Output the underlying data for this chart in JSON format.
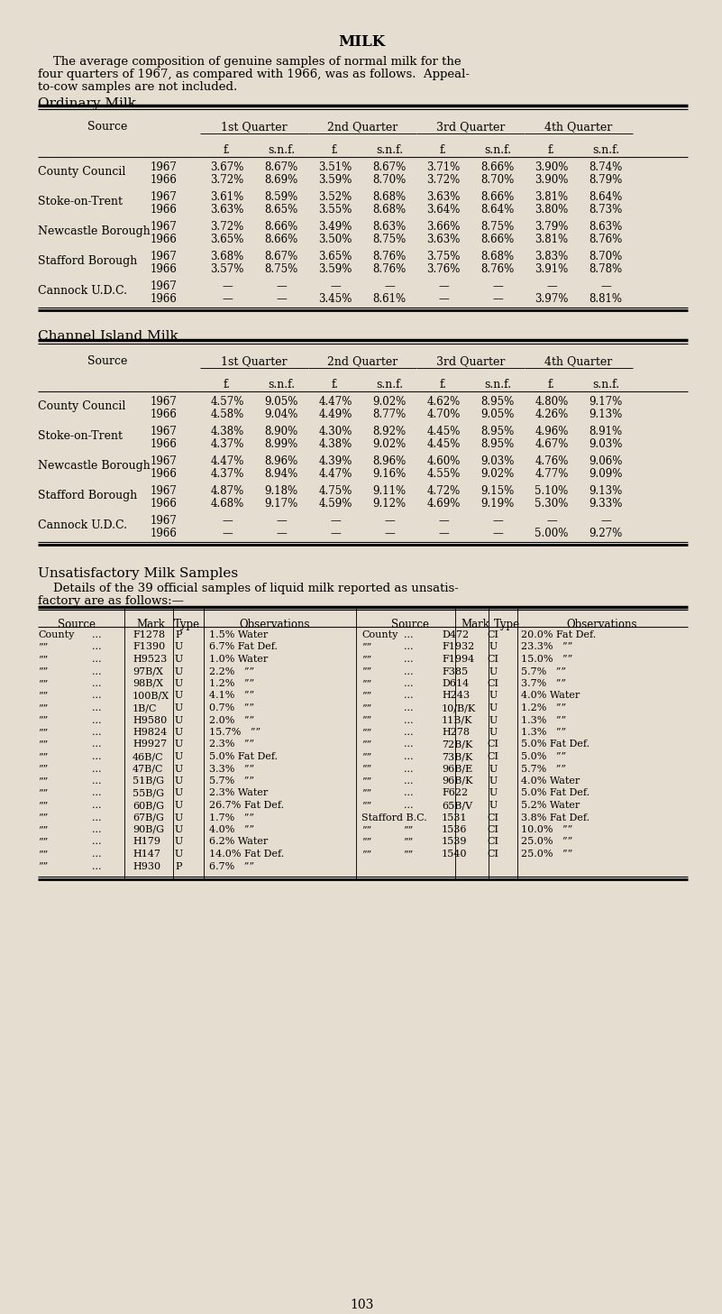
{
  "bg_color": "#e5ddd0",
  "title": "MILK",
  "intro_line1": "    The average composition of genuine samples of normal milk for the",
  "intro_line2": "four quarters of 1967, as compared with 1966, was as follows.  Appeal-",
  "intro_line3": "to-cow samples are not included.",
  "ordinary_milk_title": "Ordinary Milk",
  "channel_island_title": "Channel Island Milk",
  "unsatisfactory_title": "Unsatisfactory Milk Samples",
  "unsatisfactory_intro1": "    Details of the 39 official samples of liquid milk reported as unsatis-",
  "unsatisfactory_intro2": "factory are as follows:—",
  "quarter_headers": [
    "1st Quarter",
    "2nd Quarter",
    "3rd Quarter",
    "4th Quarter"
  ],
  "ordinary_sources": [
    {
      "name": "County Council",
      "years": [
        "1967",
        "1966"
      ],
      "data": [
        [
          "3.67%",
          "8.67%",
          "3.51%",
          "8.67%",
          "3.71%",
          "8.66%",
          "3.90%",
          "8.74%"
        ],
        [
          "3.72%",
          "8.69%",
          "3.59%",
          "8.70%",
          "3.72%",
          "8.70%",
          "3.90%",
          "8.79%"
        ]
      ]
    },
    {
      "name": "Stoke-on-Trent",
      "years": [
        "1967",
        "1966"
      ],
      "data": [
        [
          "3.61%",
          "8.59%",
          "3.52%",
          "8.68%",
          "3.63%",
          "8.66%",
          "3.81%",
          "8.64%"
        ],
        [
          "3.63%",
          "8.65%",
          "3.55%",
          "8.68%",
          "3.64%",
          "8.64%",
          "3.80%",
          "8.73%"
        ]
      ]
    },
    {
      "name": "Newcastle Borough",
      "years": [
        "1967",
        "1966"
      ],
      "data": [
        [
          "3.72%",
          "8.66%",
          "3.49%",
          "8.63%",
          "3.66%",
          "8.75%",
          "3.79%",
          "8.63%"
        ],
        [
          "3.65%",
          "8.66%",
          "3.50%",
          "8.75%",
          "3.63%",
          "8.66%",
          "3.81%",
          "8.76%"
        ]
      ]
    },
    {
      "name": "Stafford Borough",
      "years": [
        "1967",
        "1966"
      ],
      "data": [
        [
          "3.68%",
          "8.67%",
          "3.65%",
          "8.76%",
          "3.75%",
          "8.68%",
          "3.83%",
          "8.70%"
        ],
        [
          "3.57%",
          "8.75%",
          "3.59%",
          "8.76%",
          "3.76%",
          "8.76%",
          "3.91%",
          "8.78%"
        ]
      ]
    },
    {
      "name": "Cannock U.D.C.",
      "years": [
        "1967",
        "1966"
      ],
      "data": [
        [
          "—",
          "—",
          "—",
          "—",
          "—",
          "—",
          "—",
          "—"
        ],
        [
          "—",
          "—",
          "3.45%",
          "8.61%",
          "—",
          "—",
          "3.97%",
          "8.81%"
        ]
      ]
    }
  ],
  "channel_sources": [
    {
      "name": "County Council",
      "years": [
        "1967",
        "1966"
      ],
      "data": [
        [
          "4.57%",
          "9.05%",
          "4.47%",
          "9.02%",
          "4.62%",
          "8.95%",
          "4.80%",
          "9.17%"
        ],
        [
          "4.58%",
          "9.04%",
          "4.49%",
          "8.77%",
          "4.70%",
          "9.05%",
          "4.26%",
          "9.13%"
        ]
      ]
    },
    {
      "name": "Stoke-on-Trent",
      "years": [
        "1967",
        "1966"
      ],
      "data": [
        [
          "4.38%",
          "8.90%",
          "4.30%",
          "8.92%",
          "4.45%",
          "8.95%",
          "4.96%",
          "8.91%"
        ],
        [
          "4.37%",
          "8.99%",
          "4.38%",
          "9.02%",
          "4.45%",
          "8.95%",
          "4.67%",
          "9.03%"
        ]
      ]
    },
    {
      "name": "Newcastle Borough",
      "years": [
        "1967",
        "1966"
      ],
      "data": [
        [
          "4.47%",
          "8.96%",
          "4.39%",
          "8.96%",
          "4.60%",
          "9.03%",
          "4.76%",
          "9.06%"
        ],
        [
          "4.37%",
          "8.94%",
          "4.47%",
          "9.16%",
          "4.55%",
          "9.02%",
          "4.77%",
          "9.09%"
        ]
      ]
    },
    {
      "name": "Stafford Borough",
      "years": [
        "1967",
        "1966"
      ],
      "data": [
        [
          "4.87%",
          "9.18%",
          "4.75%",
          "9.11%",
          "4.72%",
          "9.15%",
          "5.10%",
          "9.13%"
        ],
        [
          "4.68%",
          "9.17%",
          "4.59%",
          "9.12%",
          "4.69%",
          "9.19%",
          "5.30%",
          "9.33%"
        ]
      ]
    },
    {
      "name": "Cannock U.D.C.",
      "years": [
        "1967",
        "1966"
      ],
      "data": [
        [
          "—",
          "—",
          "—",
          "—",
          "—",
          "—",
          "—",
          "—"
        ],
        [
          "—",
          "—",
          "—",
          "—",
          "—",
          "—",
          "5.00%",
          "9.27%"
        ]
      ]
    }
  ],
  "unsat_left": [
    [
      "County",
      "...",
      "F1278",
      "P",
      "1.5% Water"
    ],
    [
      "””",
      "...",
      "F1390",
      "U",
      "6.7% Fat Def."
    ],
    [
      "””",
      "...",
      "H9523",
      "U",
      "1.0% Water"
    ],
    [
      "””",
      "...",
      "97B/X",
      "U",
      "2.2%   ””"
    ],
    [
      "””",
      "...",
      "98B/X",
      "U",
      "1.2%   ””"
    ],
    [
      "””",
      "...",
      "100B/X",
      "U",
      "4.1%   ””"
    ],
    [
      "””",
      "...",
      "1B/C",
      "U",
      "0.7%   ””"
    ],
    [
      "””",
      "...",
      "H9580",
      "U",
      "2.0%   ””"
    ],
    [
      "””",
      "...",
      "H9824",
      "U",
      "15.7%   ””"
    ],
    [
      "””",
      "...",
      "H9927",
      "U",
      "2.3%   ””"
    ],
    [
      "””",
      "...",
      "46B/C",
      "U",
      "5.0% Fat Def."
    ],
    [
      "””",
      "...",
      "47B/C",
      "U",
      "3.3%   ””"
    ],
    [
      "””",
      "...",
      "51B/G",
      "U",
      "5.7%   ””"
    ],
    [
      "””",
      "...",
      "55B/G",
      "U",
      "2.3% Water"
    ],
    [
      "””",
      "...",
      "60B/G",
      "U",
      "26.7% Fat Def."
    ],
    [
      "””",
      "...",
      "67B/G",
      "U",
      "1.7%   ””"
    ],
    [
      "””",
      "...",
      "90B/G",
      "U",
      "4.0%   ””"
    ],
    [
      "””",
      "...",
      "H179",
      "U",
      "6.2% Water"
    ],
    [
      "””",
      "...",
      "H147",
      "U",
      "14.0% Fat Def."
    ],
    [
      "””",
      "...",
      "H930",
      "P",
      "6.7%   ””"
    ]
  ],
  "unsat_right": [
    [
      "County",
      "...",
      "D472",
      "CI",
      "20.0% Fat Def."
    ],
    [
      "””",
      "...",
      "F1932",
      "U",
      "23.3%   ””"
    ],
    [
      "””",
      "...",
      "F1994",
      "CI",
      "15.0%   ””"
    ],
    [
      "””",
      "...",
      "F385",
      "U",
      "5.7%   ””"
    ],
    [
      "””",
      "...",
      "D614",
      "CI",
      "3.7%   ””"
    ],
    [
      "””",
      "...",
      "H243",
      "U",
      "4.0% Water"
    ],
    [
      "””",
      "...",
      "10/B/K",
      "U",
      "1.2%   ””"
    ],
    [
      "””",
      "...",
      "11B/K",
      "U",
      "1.3%   ””"
    ],
    [
      "””",
      "...",
      "H278",
      "U",
      "1.3%   ””"
    ],
    [
      "””",
      "...",
      "72B/K",
      "CI",
      "5.0% Fat Def."
    ],
    [
      "””",
      "...",
      "73B/K",
      "CI",
      "5.0%   ””"
    ],
    [
      "””",
      "...",
      "96B/E",
      "U",
      "5.7%   ””"
    ],
    [
      "””",
      "...",
      "96B/K",
      "U",
      "4.0% Water"
    ],
    [
      "””",
      "...",
      "F622",
      "U",
      "5.0% Fat Def."
    ],
    [
      "””",
      "...",
      "65B/V",
      "U",
      "5.2% Water"
    ],
    [
      "Stafford B.C.",
      "",
      "1531",
      "CI",
      "3.8% Fat Def."
    ],
    [
      "””",
      "””",
      "1536",
      "CI",
      "10.0%   ””"
    ],
    [
      "””",
      "””",
      "1539",
      "CI",
      "25.0%   ””"
    ],
    [
      "””",
      "””",
      "1540",
      "CI",
      "25.0%   ””"
    ]
  ],
  "page_number": "103"
}
